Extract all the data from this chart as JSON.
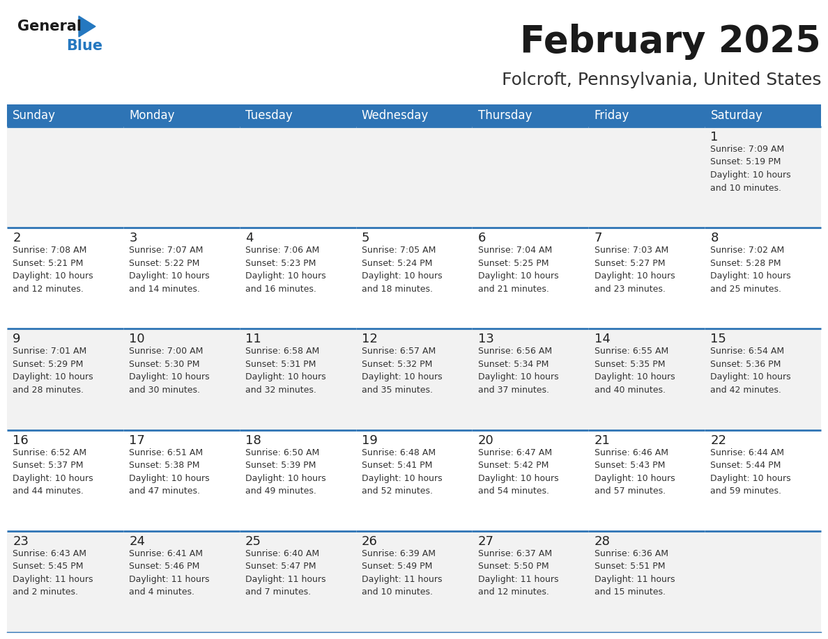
{
  "title": "February 2025",
  "subtitle": "Folcroft, Pennsylvania, United States",
  "header_bg": "#2E74B5",
  "header_text_color": "#FFFFFF",
  "odd_row_bg": "#F2F2F2",
  "even_row_bg": "#FFFFFF",
  "border_color": "#2E74B5",
  "days_of_week": [
    "Sunday",
    "Monday",
    "Tuesday",
    "Wednesday",
    "Thursday",
    "Friday",
    "Saturday"
  ],
  "title_color": "#1a1a1a",
  "subtitle_color": "#333333",
  "day_num_color": "#222222",
  "cell_text_color": "#333333",
  "logo_general_color": "#1a1a1a",
  "logo_blue_color": "#2578C0",
  "calendar": [
    [
      null,
      null,
      null,
      null,
      null,
      null,
      {
        "day": 1,
        "sunrise": "7:09 AM",
        "sunset": "5:19 PM",
        "daylight": "10 hours\nand 10 minutes."
      }
    ],
    [
      {
        "day": 2,
        "sunrise": "7:08 AM",
        "sunset": "5:21 PM",
        "daylight": "10 hours\nand 12 minutes."
      },
      {
        "day": 3,
        "sunrise": "7:07 AM",
        "sunset": "5:22 PM",
        "daylight": "10 hours\nand 14 minutes."
      },
      {
        "day": 4,
        "sunrise": "7:06 AM",
        "sunset": "5:23 PM",
        "daylight": "10 hours\nand 16 minutes."
      },
      {
        "day": 5,
        "sunrise": "7:05 AM",
        "sunset": "5:24 PM",
        "daylight": "10 hours\nand 18 minutes."
      },
      {
        "day": 6,
        "sunrise": "7:04 AM",
        "sunset": "5:25 PM",
        "daylight": "10 hours\nand 21 minutes."
      },
      {
        "day": 7,
        "sunrise": "7:03 AM",
        "sunset": "5:27 PM",
        "daylight": "10 hours\nand 23 minutes."
      },
      {
        "day": 8,
        "sunrise": "7:02 AM",
        "sunset": "5:28 PM",
        "daylight": "10 hours\nand 25 minutes."
      }
    ],
    [
      {
        "day": 9,
        "sunrise": "7:01 AM",
        "sunset": "5:29 PM",
        "daylight": "10 hours\nand 28 minutes."
      },
      {
        "day": 10,
        "sunrise": "7:00 AM",
        "sunset": "5:30 PM",
        "daylight": "10 hours\nand 30 minutes."
      },
      {
        "day": 11,
        "sunrise": "6:58 AM",
        "sunset": "5:31 PM",
        "daylight": "10 hours\nand 32 minutes."
      },
      {
        "day": 12,
        "sunrise": "6:57 AM",
        "sunset": "5:32 PM",
        "daylight": "10 hours\nand 35 minutes."
      },
      {
        "day": 13,
        "sunrise": "6:56 AM",
        "sunset": "5:34 PM",
        "daylight": "10 hours\nand 37 minutes."
      },
      {
        "day": 14,
        "sunrise": "6:55 AM",
        "sunset": "5:35 PM",
        "daylight": "10 hours\nand 40 minutes."
      },
      {
        "day": 15,
        "sunrise": "6:54 AM",
        "sunset": "5:36 PM",
        "daylight": "10 hours\nand 42 minutes."
      }
    ],
    [
      {
        "day": 16,
        "sunrise": "6:52 AM",
        "sunset": "5:37 PM",
        "daylight": "10 hours\nand 44 minutes."
      },
      {
        "day": 17,
        "sunrise": "6:51 AM",
        "sunset": "5:38 PM",
        "daylight": "10 hours\nand 47 minutes."
      },
      {
        "day": 18,
        "sunrise": "6:50 AM",
        "sunset": "5:39 PM",
        "daylight": "10 hours\nand 49 minutes."
      },
      {
        "day": 19,
        "sunrise": "6:48 AM",
        "sunset": "5:41 PM",
        "daylight": "10 hours\nand 52 minutes."
      },
      {
        "day": 20,
        "sunrise": "6:47 AM",
        "sunset": "5:42 PM",
        "daylight": "10 hours\nand 54 minutes."
      },
      {
        "day": 21,
        "sunrise": "6:46 AM",
        "sunset": "5:43 PM",
        "daylight": "10 hours\nand 57 minutes."
      },
      {
        "day": 22,
        "sunrise": "6:44 AM",
        "sunset": "5:44 PM",
        "daylight": "10 hours\nand 59 minutes."
      }
    ],
    [
      {
        "day": 23,
        "sunrise": "6:43 AM",
        "sunset": "5:45 PM",
        "daylight": "11 hours\nand 2 minutes."
      },
      {
        "day": 24,
        "sunrise": "6:41 AM",
        "sunset": "5:46 PM",
        "daylight": "11 hours\nand 4 minutes."
      },
      {
        "day": 25,
        "sunrise": "6:40 AM",
        "sunset": "5:47 PM",
        "daylight": "11 hours\nand 7 minutes."
      },
      {
        "day": 26,
        "sunrise": "6:39 AM",
        "sunset": "5:49 PM",
        "daylight": "11 hours\nand 10 minutes."
      },
      {
        "day": 27,
        "sunrise": "6:37 AM",
        "sunset": "5:50 PM",
        "daylight": "11 hours\nand 12 minutes."
      },
      {
        "day": 28,
        "sunrise": "6:36 AM",
        "sunset": "5:51 PM",
        "daylight": "11 hours\nand 15 minutes."
      },
      null
    ]
  ]
}
